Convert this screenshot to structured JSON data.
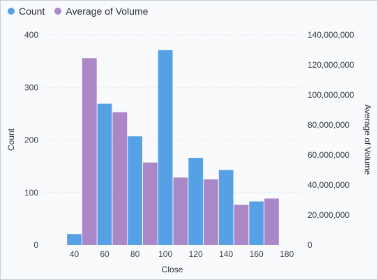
{
  "colors": {
    "count": "#56a1e6",
    "volume": "#aa88c8",
    "grid": "#e6e8ec",
    "tick_text": "#3a3f47"
  },
  "legend": {
    "items": [
      {
        "label": "Count",
        "color": "#56a1e6"
      },
      {
        "label": "Average of Volume",
        "color": "#aa88c8"
      }
    ]
  },
  "chart_data": {
    "type": "bar",
    "xlabel": "Close",
    "ylabel": "Count",
    "y2label": "Average of Volume",
    "x_ticks": [
      40,
      60,
      80,
      100,
      120,
      140,
      160,
      180
    ],
    "xlim": [
      20,
      190
    ],
    "bin_width": 10,
    "ylim": [
      0,
      400
    ],
    "y_ticks": [
      0,
      100,
      200,
      300,
      400
    ],
    "y2lim": [
      0,
      140000000
    ],
    "y2_ticks": [
      0,
      20000000,
      40000000,
      60000000,
      80000000,
      100000000,
      120000000,
      140000000
    ],
    "y2_tick_labels": [
      "0",
      "20,000,000",
      "40,000,000",
      "60,000,000",
      "80,000,000",
      "100,000,000",
      "120,000,000",
      "140,000,000"
    ],
    "grid": true,
    "legend_position": "top-left",
    "series": [
      {
        "name": "Count",
        "axis": "left",
        "color": "#56a1e6",
        "bins": [
          {
            "x": 40,
            "value": 21
          },
          {
            "x": 60,
            "value": 269
          },
          {
            "x": 80,
            "value": 207
          },
          {
            "x": 100,
            "value": 371
          },
          {
            "x": 120,
            "value": 166
          },
          {
            "x": 140,
            "value": 143
          },
          {
            "x": 160,
            "value": 83
          }
        ]
      },
      {
        "name": "Average of Volume",
        "axis": "right",
        "color": "#aa88c8",
        "bins": [
          {
            "x": 50,
            "value": 124500000
          },
          {
            "x": 70,
            "value": 88500000
          },
          {
            "x": 90,
            "value": 55000000
          },
          {
            "x": 110,
            "value": 45000000
          },
          {
            "x": 130,
            "value": 43800000
          },
          {
            "x": 150,
            "value": 26800000
          },
          {
            "x": 170,
            "value": 31000000
          }
        ]
      }
    ]
  }
}
